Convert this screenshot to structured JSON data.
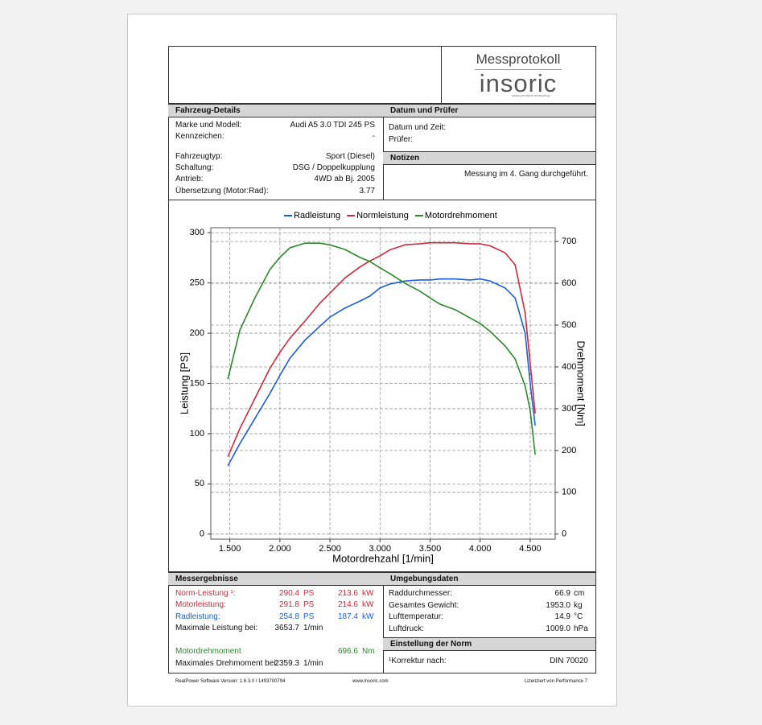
{
  "header": {
    "title": "Messprotokoll",
    "logo": "insoric",
    "tagline": "swiss precision measuring"
  },
  "vehicle": {
    "title": "Fahrzeug-Details",
    "rows": [
      [
        "Marke und Modell:",
        "Audi A5 3.0 TDI 245 PS"
      ],
      [
        "Kennzeichen:",
        "-"
      ],
      [
        "Fahrzeugtyp:",
        "Sport (Diesel)"
      ],
      [
        "Schaltung:",
        "DSG / Doppelkupplung"
      ],
      [
        "Antrieb:",
        "4WD ab Bj. 2005"
      ],
      [
        "Übersetzung (Motor:Rad):",
        "3.77"
      ]
    ]
  },
  "inspection": {
    "title": "Datum und Prüfer",
    "labels": [
      "Datum und Zeit:",
      "Prüfer:"
    ]
  },
  "notes": {
    "title": "Notizen",
    "text": "Messung im 4. Gang durchgeführt."
  },
  "chart_data": {
    "type": "line",
    "x_label": "Motordrehzahl [1/min]",
    "y_label": "Leistung [PS]",
    "y2_label": "Drehmoment [Nm]",
    "x": [
      1480,
      1600,
      1750,
      1900,
      2000,
      2100,
      2250,
      2400,
      2500,
      2650,
      2800,
      2900,
      3000,
      3100,
      3250,
      3400,
      3500,
      3600,
      3750,
      3900,
      4000,
      4100,
      4250,
      4350,
      4450,
      4500,
      4550
    ],
    "series": [
      {
        "name": "Radleistung",
        "color": "#1a5fd6",
        "values": [
          68,
          90,
          115,
          140,
          158,
          175,
          193,
          207,
          216,
          225,
          232,
          237,
          245,
          249,
          252,
          253,
          253,
          254,
          254,
          253,
          254,
          252,
          245,
          235,
          200,
          150,
          108
        ]
      },
      {
        "name": "Normleistung",
        "color": "#d0283c",
        "values": [
          77,
          105,
          135,
          165,
          181,
          195,
          212,
          230,
          240,
          255,
          266,
          272,
          277,
          283,
          288,
          289,
          290,
          290,
          290,
          289,
          289,
          287,
          280,
          268,
          220,
          170,
          120
        ]
      },
      {
        "name": "Motordrehmoment",
        "color": "#2a8a2a",
        "axis": "y2",
        "values": [
          371,
          488,
          565,
          633,
          662,
          685,
          696,
          696,
          692,
          681,
          662,
          652,
          637,
          623,
          600,
          581,
          565,
          550,
          537,
          517,
          504,
          485,
          450,
          419,
          354,
          296,
          190
        ]
      }
    ],
    "xlim": [
      1310,
      4750
    ],
    "xticks": [
      {
        "value": 1500,
        "label": "1.500"
      },
      {
        "value": 2000,
        "label": "2.000"
      },
      {
        "value": 2500,
        "label": "2.500"
      },
      {
        "value": 3000,
        "label": "3.000"
      },
      {
        "value": 3500,
        "label": "3.500"
      },
      {
        "value": 4000,
        "label": "4.000"
      },
      {
        "value": 4500,
        "label": "4.500"
      }
    ],
    "ylim": [
      -5,
      305
    ],
    "yticks": [
      0,
      50,
      100,
      150,
      200,
      250,
      300
    ],
    "y2lim": [
      -12,
      733
    ],
    "y2ticks": [
      0,
      100,
      200,
      300,
      400,
      500,
      600,
      700
    ],
    "grid": true,
    "legend": "top"
  },
  "results": {
    "title": "Messergebnisse",
    "rows": [
      {
        "label": "Norm-Leistung ¹:",
        "value": "290.4",
        "unit": "PS",
        "value2": "213.6",
        "unit2": "kW",
        "color": "#d0283c"
      },
      {
        "label": "Motorleistung:",
        "value": "291.8",
        "unit": "PS",
        "value2": "214.6",
        "unit2": "kW",
        "color": "#d0283c"
      },
      {
        "label": "Radleistung:",
        "value": "254.8",
        "unit": "PS",
        "value2": "187.4",
        "unit2": "kW",
        "color": "#1a5fd6"
      },
      {
        "label": "Maximale Leistung bei:",
        "value": "3653.7",
        "unit": "1/min"
      },
      {
        "label": "Motordrehmoment",
        "value2": "696.6",
        "unit2": "Nm",
        "color": "#2a8a2a"
      },
      {
        "label": "Maximales Drehmoment bei:",
        "value": "2359.3",
        "unit": "1/min"
      }
    ]
  },
  "environment": {
    "title": "Umgebungsdaten",
    "rows": [
      {
        "label": "Raddurchmesser:",
        "value": "66.9",
        "unit": "cm"
      },
      {
        "label": "Gesamtes Gewicht:",
        "value": "1953.0",
        "unit": "kg"
      },
      {
        "label": "Lufttemperatur:",
        "value": "14.9",
        "unit": "°C"
      },
      {
        "label": "Luftdruck:",
        "value": "1009.0",
        "unit": "hPa"
      }
    ]
  },
  "norm": {
    "title": "Einstellung der Norm",
    "label": "¹Korrektur nach:",
    "value": "DIN 70020"
  },
  "footer": {
    "software": "RealPower Software Version: 1.6.3.0 / 1493700794",
    "website": "www.insoric.com",
    "license": "Lizenziert von Performance 7"
  }
}
